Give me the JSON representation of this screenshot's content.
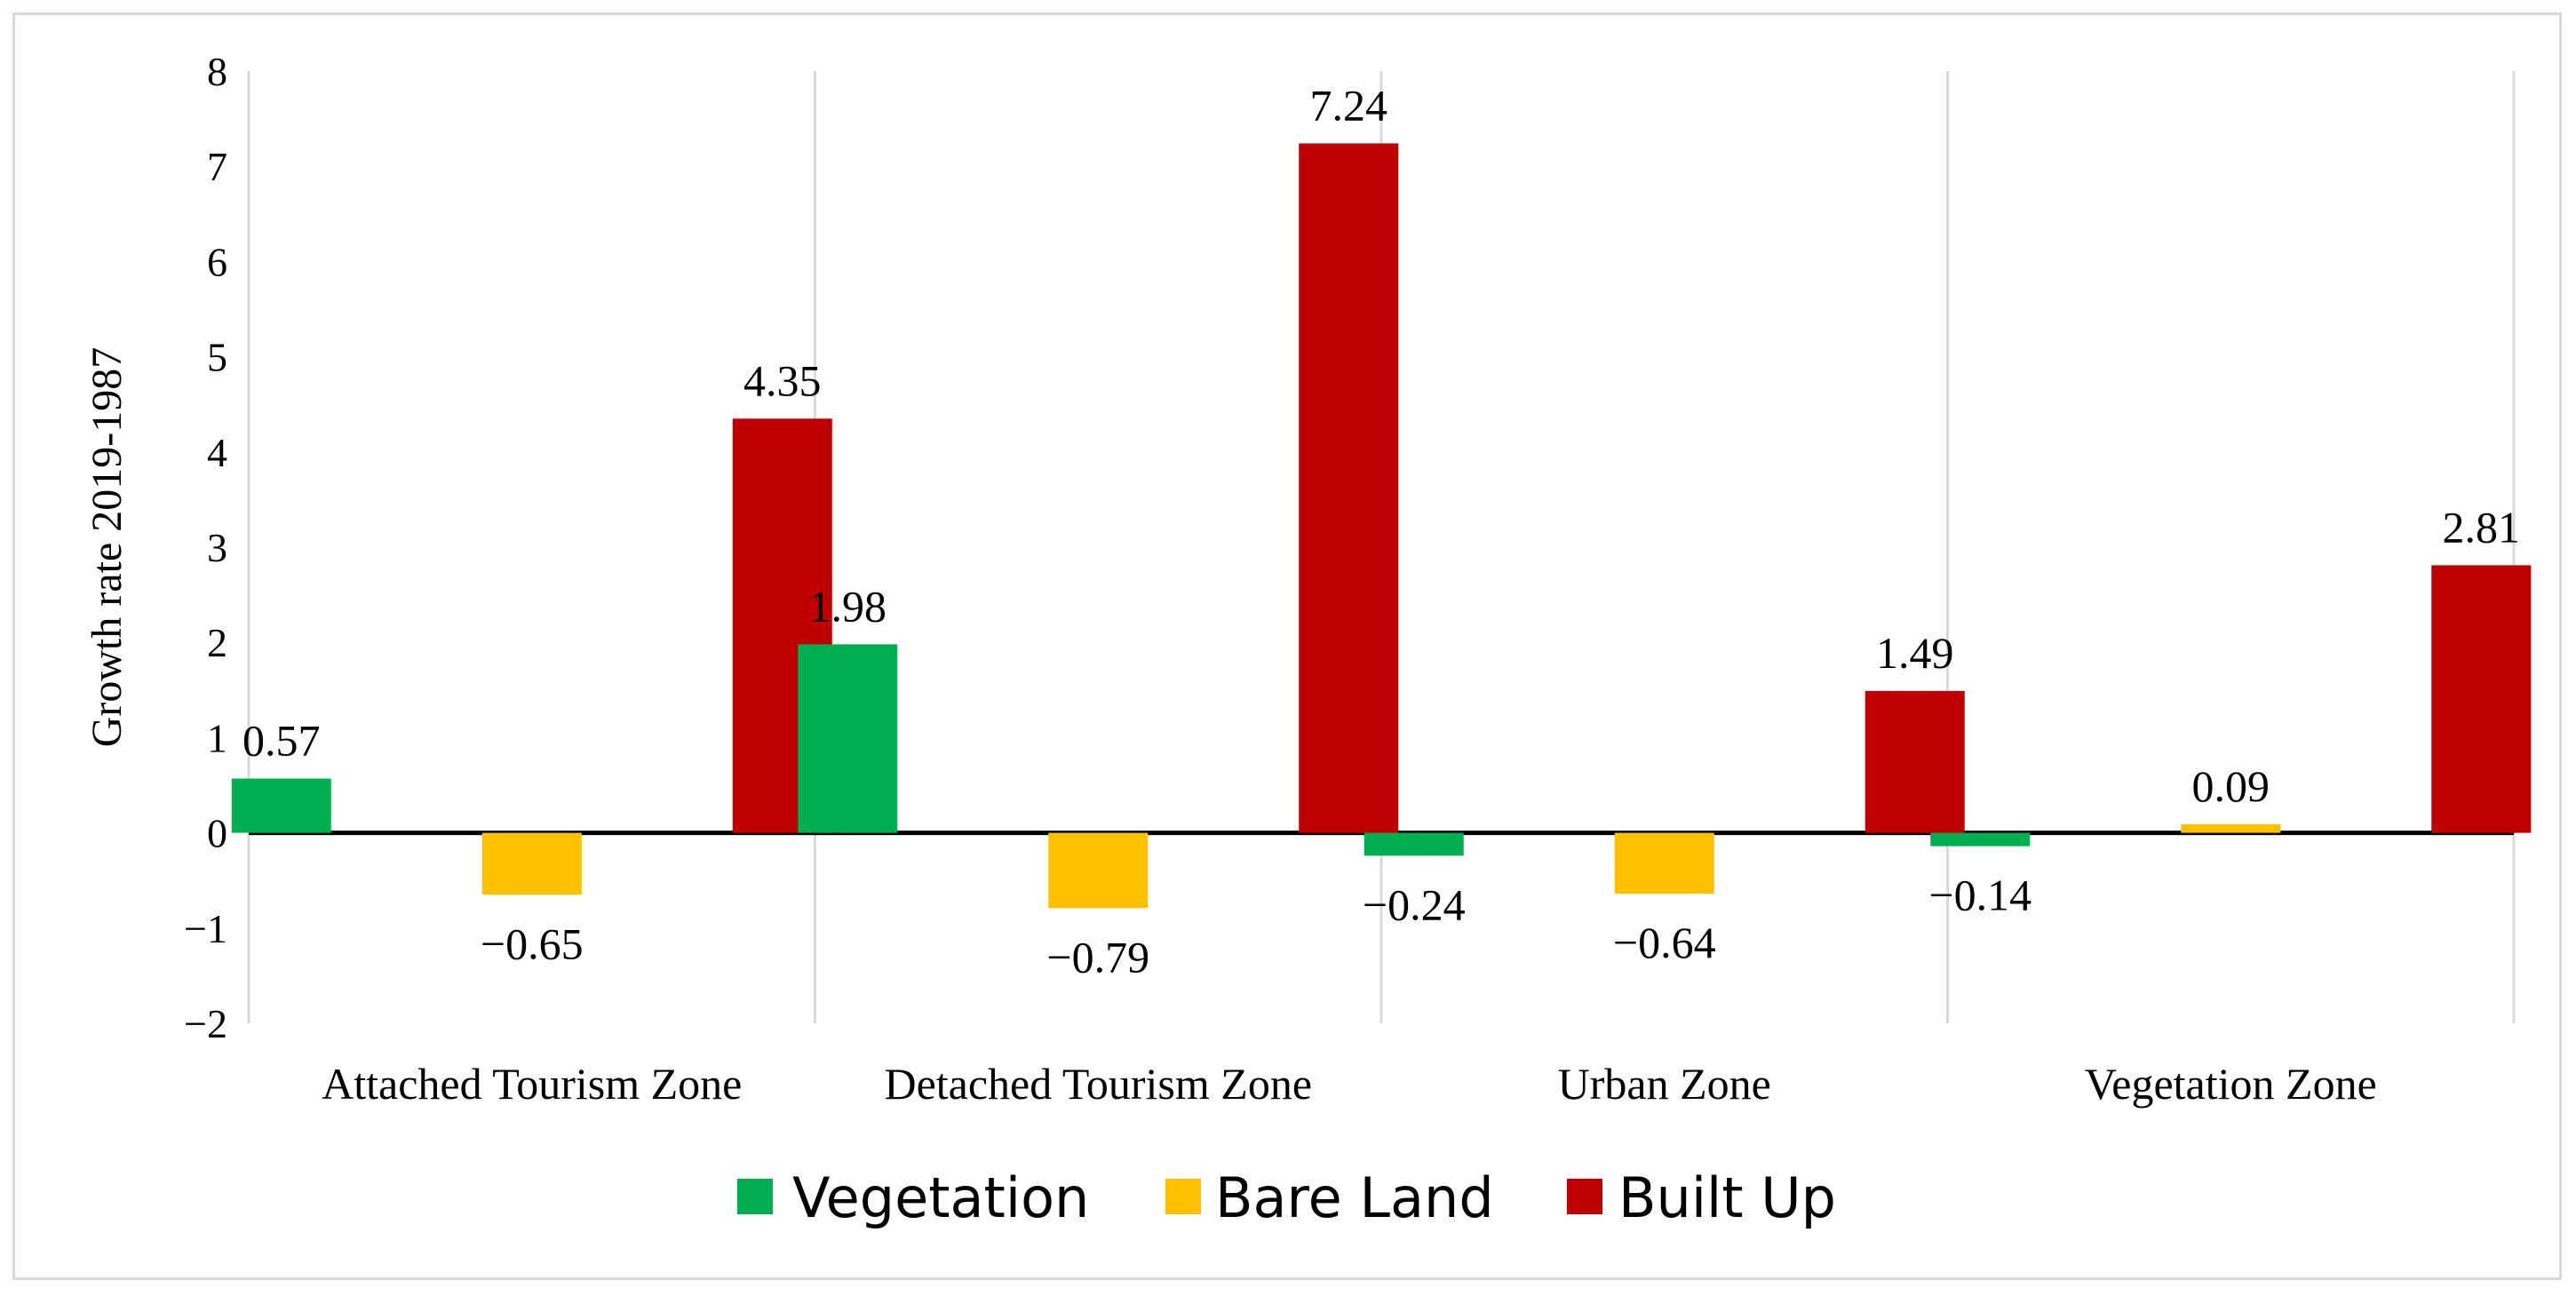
{
  "chart_data": {
    "type": "bar",
    "categories": [
      "Attached Tourism Zone",
      "Detached Tourism Zone",
      "Urban Zone",
      "Vegetation Zone"
    ],
    "series": [
      {
        "name": "Vegetation",
        "color": "#00b050",
        "values": [
          0.57,
          1.98,
          -0.24,
          -0.14
        ]
      },
      {
        "name": "Bare Land",
        "color": "#ffc000",
        "values": [
          -0.65,
          -0.79,
          -0.64,
          0.09
        ]
      },
      {
        "name": "Built Up",
        "color": "#c00000",
        "values": [
          4.35,
          7.24,
          1.49,
          2.81
        ]
      }
    ],
    "data_labels": [
      [
        "0.57",
        "1.98",
        "−0.24",
        "−0.14"
      ],
      [
        "−0.65",
        "−0.79",
        "−0.64",
        "0.09"
      ],
      [
        "4.35",
        "7.24",
        "1.49",
        "2.81"
      ]
    ],
    "ylabel": "Growth rate 2019-1987",
    "xlabel": "",
    "title": "",
    "ylim": [
      -2,
      8
    ],
    "yticks": [
      -2,
      -1,
      0,
      1,
      2,
      3,
      4,
      5,
      6,
      7,
      8
    ],
    "ytick_labels": [
      "−2",
      "−1",
      "0",
      "1",
      "2",
      "3",
      "4",
      "5",
      "6",
      "7",
      "8"
    ],
    "grid": "vertical separators between categories",
    "legend": "bottom-center"
  }
}
